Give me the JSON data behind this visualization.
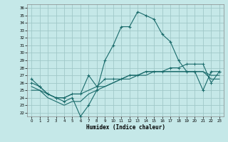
{
  "xlabel": "Humidex (Indice chaleur)",
  "background_color": "#c5e8e8",
  "grid_color": "#a0c8c8",
  "line_color": "#1a6b6b",
  "x_ticks": [
    0,
    1,
    2,
    3,
    4,
    5,
    6,
    7,
    8,
    9,
    10,
    11,
    12,
    13,
    14,
    15,
    16,
    17,
    18,
    19,
    20,
    21,
    22,
    23
  ],
  "y_ticks": [
    22,
    23,
    24,
    25,
    26,
    27,
    28,
    29,
    30,
    31,
    32,
    33,
    34,
    35,
    36
  ],
  "ylim": [
    21.5,
    36.5
  ],
  "xlim": [
    -0.5,
    23.5
  ],
  "curve1_x": [
    0,
    1,
    2,
    3,
    4,
    5,
    6,
    7,
    8,
    9,
    10,
    11,
    12,
    13,
    14,
    15,
    16,
    17,
    18,
    19,
    20,
    21,
    22,
    23
  ],
  "curve1_y": [
    26.5,
    25.5,
    24.5,
    24.0,
    23.5,
    24.0,
    21.5,
    23.0,
    25.0,
    29.0,
    31.0,
    33.5,
    33.5,
    35.5,
    35.0,
    34.5,
    32.5,
    31.5,
    29.0,
    27.5,
    27.5,
    25.0,
    27.5,
    27.5
  ],
  "curve2_x": [
    0,
    1,
    2,
    3,
    4,
    5,
    6,
    7,
    8,
    9,
    10,
    11,
    12,
    13,
    14,
    15,
    16,
    17,
    18,
    19,
    20,
    21,
    22,
    23
  ],
  "curve2_y": [
    26.0,
    25.5,
    24.5,
    24.0,
    24.0,
    24.5,
    24.5,
    27.0,
    25.5,
    26.5,
    26.5,
    26.5,
    27.0,
    27.0,
    27.5,
    27.5,
    27.5,
    28.0,
    28.0,
    28.5,
    28.5,
    28.5,
    26.0,
    27.5
  ],
  "curve3_x": [
    0,
    1,
    2,
    3,
    4,
    5,
    6,
    7,
    8,
    9,
    10,
    11,
    12,
    13,
    14,
    15,
    16,
    17,
    18,
    19,
    20,
    21,
    22,
    23
  ],
  "curve3_y": [
    25.5,
    25.0,
    24.5,
    24.0,
    24.0,
    24.5,
    24.5,
    25.0,
    25.5,
    25.5,
    26.0,
    26.5,
    27.0,
    27.0,
    27.5,
    27.5,
    27.5,
    27.5,
    27.5,
    27.5,
    27.5,
    27.5,
    27.0,
    27.0
  ],
  "curve4_x": [
    0,
    1,
    2,
    3,
    4,
    5,
    6,
    7,
    8,
    9,
    10,
    11,
    12,
    13,
    14,
    15,
    16,
    17,
    18,
    19,
    20,
    21,
    22,
    23
  ],
  "curve4_y": [
    25.0,
    25.0,
    24.0,
    23.5,
    23.0,
    23.5,
    23.5,
    24.5,
    25.0,
    25.5,
    26.0,
    26.5,
    26.5,
    27.0,
    27.0,
    27.5,
    27.5,
    27.5,
    27.5,
    27.5,
    27.5,
    27.5,
    26.5,
    26.5
  ]
}
